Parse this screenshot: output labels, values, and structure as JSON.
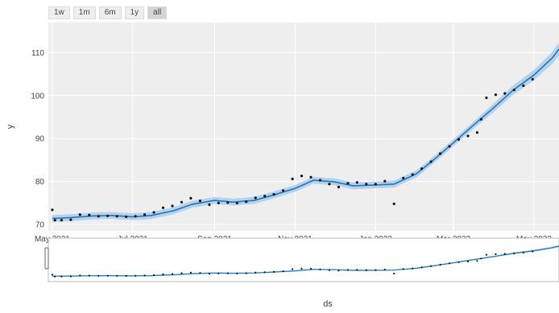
{
  "range_selector": {
    "buttons": [
      {
        "label": "1w",
        "active": false
      },
      {
        "label": "1m",
        "active": false
      },
      {
        "label": "6m",
        "active": false
      },
      {
        "label": "1y",
        "active": false
      },
      {
        "label": "all",
        "active": true
      }
    ]
  },
  "colors": {
    "band": "#a9cdec",
    "line": "#1f77b4",
    "points": "#111111",
    "grid": "#ffffff",
    "plot_bg": "#eeeeee",
    "button_bg": "#eeeeee",
    "button_active_bg": "#d4d4d4"
  },
  "chart_data": {
    "type": "line",
    "title": "",
    "xlabel": "ds",
    "ylabel": "y",
    "grid": true,
    "xlim": [
      "2021-04-28",
      "2022-05-20"
    ],
    "ylim": [
      68.5,
      117
    ],
    "y_ticks": [
      70,
      80,
      90,
      100,
      110
    ],
    "x_ticks": [
      {
        "date": "2021-05-01",
        "label": "May 2021"
      },
      {
        "date": "2021-07-01",
        "label": "Jul 2021"
      },
      {
        "date": "2021-09-01",
        "label": "Sep 2021"
      },
      {
        "date": "2021-11-01",
        "label": "Nov 2021"
      },
      {
        "date": "2022-01-01",
        "label": "Jan 2022"
      },
      {
        "date": "2022-03-01",
        "label": "Mar 2022"
      },
      {
        "date": "2022-05-01",
        "label": "May 2022"
      }
    ],
    "forecast": {
      "x": [
        "2021-05-01",
        "2021-05-15",
        "2021-06-01",
        "2021-06-15",
        "2021-07-01",
        "2021-07-15",
        "2021-08-01",
        "2021-08-15",
        "2021-09-01",
        "2021-09-15",
        "2021-10-01",
        "2021-10-15",
        "2021-11-01",
        "2021-11-15",
        "2021-12-01",
        "2021-12-15",
        "2022-01-01",
        "2022-01-15",
        "2022-02-01",
        "2022-02-15",
        "2022-03-01",
        "2022-03-15",
        "2022-04-01",
        "2022-04-15",
        "2022-05-01",
        "2022-05-15",
        "2022-05-20"
      ],
      "yhat": [
        71.4,
        71.6,
        72.0,
        72.1,
        71.8,
        72.1,
        73.2,
        74.7,
        75.6,
        75.2,
        75.6,
        76.8,
        78.4,
        80.3,
        79.9,
        79.0,
        79.2,
        79.4,
        81.8,
        85.3,
        89.0,
        92.8,
        97.3,
        101.2,
        104.8,
        108.8,
        110.8
      ],
      "yhat_lower": [
        70.6,
        70.8,
        71.2,
        71.3,
        71.0,
        71.3,
        72.4,
        73.9,
        74.8,
        74.4,
        74.8,
        76.0,
        77.6,
        79.5,
        79.1,
        78.2,
        78.4,
        78.6,
        81.0,
        84.5,
        88.2,
        92.0,
        96.3,
        100.1,
        103.6,
        107.4,
        109.2
      ],
      "yhat_upper": [
        72.2,
        72.4,
        72.8,
        72.9,
        72.6,
        72.9,
        74.0,
        75.5,
        76.4,
        76.0,
        76.4,
        77.6,
        79.2,
        81.1,
        80.7,
        79.8,
        80.0,
        80.2,
        82.6,
        86.1,
        89.8,
        93.6,
        98.3,
        102.3,
        106.0,
        110.2,
        112.4
      ]
    },
    "observed": {
      "x": [
        "2021-05-01",
        "2021-05-03",
        "2021-05-08",
        "2021-05-15",
        "2021-05-22",
        "2021-05-29",
        "2021-06-05",
        "2021-06-12",
        "2021-06-19",
        "2021-06-26",
        "2021-07-03",
        "2021-07-10",
        "2021-07-17",
        "2021-07-24",
        "2021-07-31",
        "2021-08-07",
        "2021-08-14",
        "2021-08-21",
        "2021-08-28",
        "2021-09-04",
        "2021-09-11",
        "2021-09-18",
        "2021-09-25",
        "2021-10-02",
        "2021-10-09",
        "2021-10-16",
        "2021-10-23",
        "2021-10-30",
        "2021-11-06",
        "2021-11-13",
        "2021-11-20",
        "2021-11-27",
        "2021-12-04",
        "2021-12-11",
        "2021-12-18",
        "2021-12-25",
        "2022-01-01",
        "2022-01-08",
        "2022-01-15",
        "2022-01-22",
        "2022-01-29",
        "2022-02-05",
        "2022-02-12",
        "2022-02-19",
        "2022-02-26",
        "2022-03-05",
        "2022-03-12",
        "2022-03-19",
        "2022-03-22",
        "2022-03-26",
        "2022-04-02",
        "2022-04-09",
        "2022-04-16",
        "2022-04-23",
        "2022-04-30"
      ],
      "y": [
        73.4,
        71.0,
        71.0,
        71.1,
        72.3,
        72.2,
        71.9,
        72.0,
        71.9,
        71.8,
        71.9,
        72.3,
        72.8,
        73.9,
        74.3,
        75.2,
        76.1,
        75.5,
        74.6,
        75.0,
        75.1,
        75.0,
        75.3,
        76.2,
        76.6,
        77.0,
        77.9,
        80.6,
        81.3,
        81.0,
        80.3,
        79.4,
        78.7,
        79.6,
        79.8,
        79.4,
        79.4,
        80.1,
        74.8,
        80.8,
        81.6,
        83.0,
        84.6,
        86.5,
        88.2,
        89.8,
        90.6,
        91.4,
        94.5,
        99.5,
        100.2,
        100.5,
        101.3,
        102.3,
        103.8
      ]
    }
  }
}
